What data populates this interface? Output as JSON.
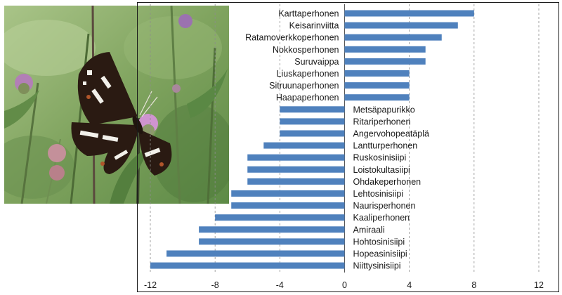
{
  "chart_data": {
    "type": "bar",
    "orientation": "horizontal",
    "title": "",
    "xlabel": "",
    "ylabel": "",
    "xlim": [
      -12,
      12
    ],
    "x_ticks": [
      "-12",
      "-8",
      "-4",
      "0",
      "4",
      "8",
      "12"
    ],
    "grid": "vertical dashed",
    "legend": "none",
    "bar_color": "#4f81bd",
    "categories": [
      "Karttaperhonen",
      "Keisarinviitta",
      "Ratamoverkkoperhonen",
      "Nokkosperhonen",
      "Suruvaippa",
      "Liuskaperhonen",
      "Sitruunaperhonen",
      "Haapaperhonen",
      "Metsäpapurikko",
      "Ritariperhonen",
      "Angervohopeatäplä",
      "Lantturperhonen",
      "Ruskosinisiipi",
      "Loistokultasiipi",
      "Ohdakeperhonen",
      "Lehtosinisiipi",
      "Naurisperhonen",
      "Kaaliperhonen",
      "Amiraali",
      "Hohtosinisiipi",
      "Hopeasinisiipi",
      "Niittysinisiipi"
    ],
    "values": [
      8,
      7,
      6,
      5,
      5,
      4,
      4,
      4,
      -4,
      -4,
      -4,
      -5,
      -6,
      -6,
      -6,
      -7,
      -7,
      -8,
      -9,
      -9,
      -11,
      -12
    ]
  },
  "photo": {
    "subject": "butterfly-on-thistle",
    "colors": {
      "wing_dark": "#2a1a12",
      "wing_white": "#f2f0ea",
      "wing_orange": "#b0552a",
      "flower": "#c98bc4",
      "leaf": "#6f9a52",
      "background": "#9bb87a"
    }
  }
}
